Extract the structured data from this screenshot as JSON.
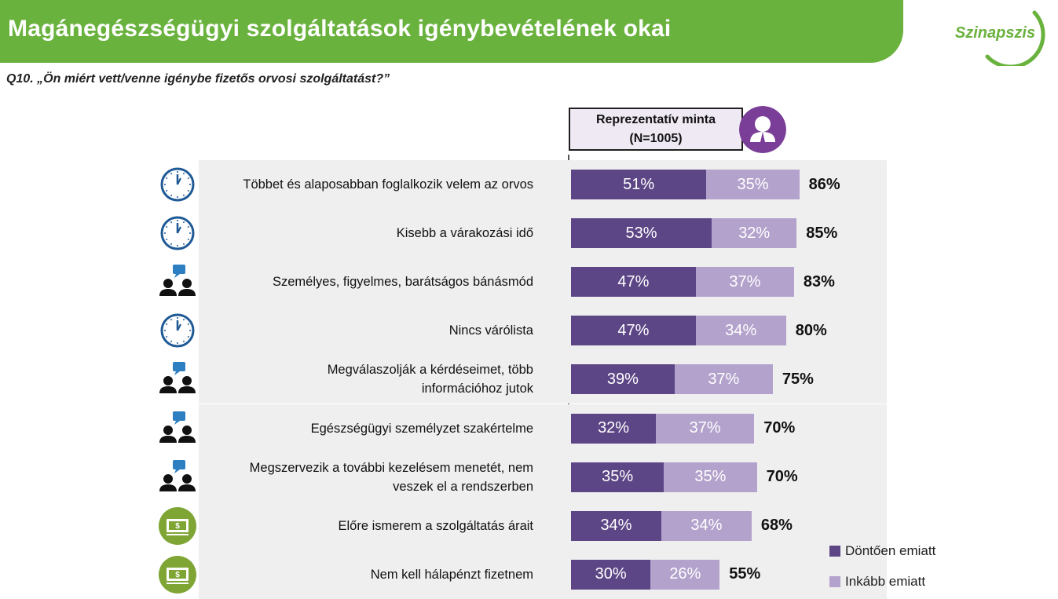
{
  "header": {
    "title": "Magánegészségügyi szolgáltatások igénybevételének okai",
    "logo_text": "Szinapszis",
    "question": "Q10. „Ön miért vett/venne igénybe fizetős orvosi szolgáltatást?”"
  },
  "sample": {
    "line1": "Reprezentatív minta",
    "line2": "(N=1005)",
    "icon": "person-icon"
  },
  "colors": {
    "title_bar": "#6ab23e",
    "dark": "#5d4686",
    "light": "#b3a2cc",
    "icon_blue": "#1f5a96",
    "icon_green": "#7fa534",
    "sample_icon": "#7a3e98"
  },
  "chart_data": {
    "type": "bar",
    "orientation": "horizontal",
    "stacked": true,
    "categories": [
      "Többet és alaposabban foglalkozik velem az orvos",
      "Kisebb a várakozási idő",
      "Személyes, figyelmes, barátságos bánásmód",
      "Nincs várólista",
      "Megválaszolják a kérdéseimet, több információhoz jutok",
      "Egészségügyi személyzet szakértelme",
      "Megszervezik a további kezelésem menetét, nem veszek el a rendszerben",
      "Előre ismerem a szolgáltatás árait",
      "Nem kell hálapénzt fizetnem"
    ],
    "category_lines": [
      [
        "Többet és alaposabban foglalkozik velem az orvos"
      ],
      [
        "Kisebb a várakozási idő"
      ],
      [
        "Személyes, figyelmes, barátságos bánásmód"
      ],
      [
        "Nincs várólista"
      ],
      [
        "Megválaszolják a kérdéseimet, több",
        "információhoz jutok"
      ],
      [
        "Egészségügyi személyzet szakértelme"
      ],
      [
        "Megszervezik a további kezelésem menetét, nem",
        "veszek el a rendszerben"
      ],
      [
        "Előre ismerem a szolgáltatás árait"
      ],
      [
        "Nem kell hálapénzt fizetnem"
      ]
    ],
    "icons": [
      "clock-icon",
      "clock-icon",
      "people-chat-icon",
      "clock-icon",
      "people-chat-icon",
      "people-chat-icon",
      "people-chat-icon",
      "money-icon",
      "money-icon"
    ],
    "series": [
      {
        "name": "Döntően emiatt",
        "values": [
          51,
          53,
          47,
          47,
          39,
          32,
          35,
          34,
          30
        ],
        "labels": [
          "51%",
          "53%",
          "47%",
          "47%",
          "39%",
          "32%",
          "35%",
          "34%",
          "30%"
        ]
      },
      {
        "name": "Inkább emiatt",
        "values": [
          35,
          32,
          37,
          34,
          37,
          37,
          35,
          34,
          26
        ],
        "labels": [
          "35%",
          "32%",
          "37%",
          "34%",
          "37%",
          "37%",
          "35%",
          "34%",
          "26%"
        ]
      }
    ],
    "totals": [
      86,
      85,
      83,
      80,
      75,
      70,
      70,
      68,
      55
    ],
    "total_labels": [
      "86%",
      "85%",
      "83%",
      "80%",
      "75%",
      "70%",
      "70%",
      "68%",
      "55%"
    ],
    "legend": {
      "position": "bottom-right",
      "items": [
        "Döntően emiatt",
        "Inkább emiatt"
      ]
    },
    "xlim": [
      0,
      100
    ],
    "grid": false
  }
}
